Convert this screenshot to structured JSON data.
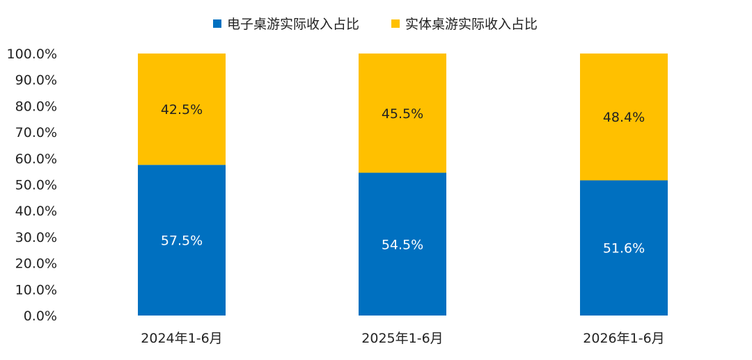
{
  "chart_data": {
    "type": "bar",
    "stacked": true,
    "categories": [
      "2024年1-6月",
      "2025年1-6月",
      "2026年1-6月"
    ],
    "series": [
      {
        "name": "电子桌游实际收入占比",
        "values": [
          57.5,
          54.5,
          51.6
        ],
        "labels": [
          "57.5%",
          "54.5%",
          "51.6%"
        ],
        "color": "#0070C0"
      },
      {
        "name": "实体桌游实际收入占比",
        "values": [
          42.5,
          45.5,
          48.4
        ],
        "labels": [
          "42.5%",
          "45.5%",
          "48.4%"
        ],
        "color": "#FFC000"
      }
    ],
    "ylim": [
      0,
      100
    ],
    "yticks": [
      "0.0%",
      "10.0%",
      "20.0%",
      "30.0%",
      "40.0%",
      "50.0%",
      "60.0%",
      "70.0%",
      "80.0%",
      "90.0%",
      "100.0%"
    ],
    "legend": "top-center",
    "grid": false
  }
}
